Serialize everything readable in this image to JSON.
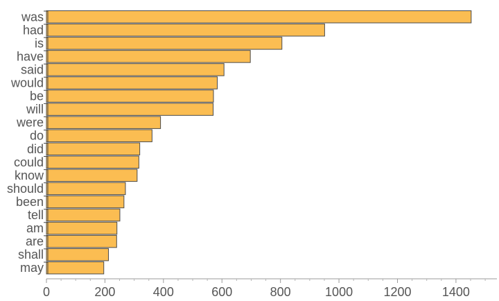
{
  "chart_data": {
    "type": "bar",
    "orientation": "horizontal",
    "categories": [
      "was",
      "had",
      "is",
      "have",
      "said",
      "would",
      "be",
      "will",
      "were",
      "do",
      "did",
      "could",
      "know",
      "should",
      "been",
      "tell",
      "am",
      "are",
      "shall",
      "may"
    ],
    "values": [
      1452,
      951,
      805,
      697,
      607,
      584,
      571,
      570,
      390,
      361,
      319,
      316,
      310,
      270,
      265,
      251,
      241,
      240,
      212,
      196
    ],
    "xlim": [
      0,
      1540
    ],
    "xticks": [
      0,
      200,
      400,
      600,
      800,
      1000,
      1200,
      1400
    ],
    "title": "",
    "xlabel": "",
    "ylabel": "",
    "grid": false,
    "bar_color": "#fbbd52",
    "edge_color": "#4a4a4a"
  }
}
